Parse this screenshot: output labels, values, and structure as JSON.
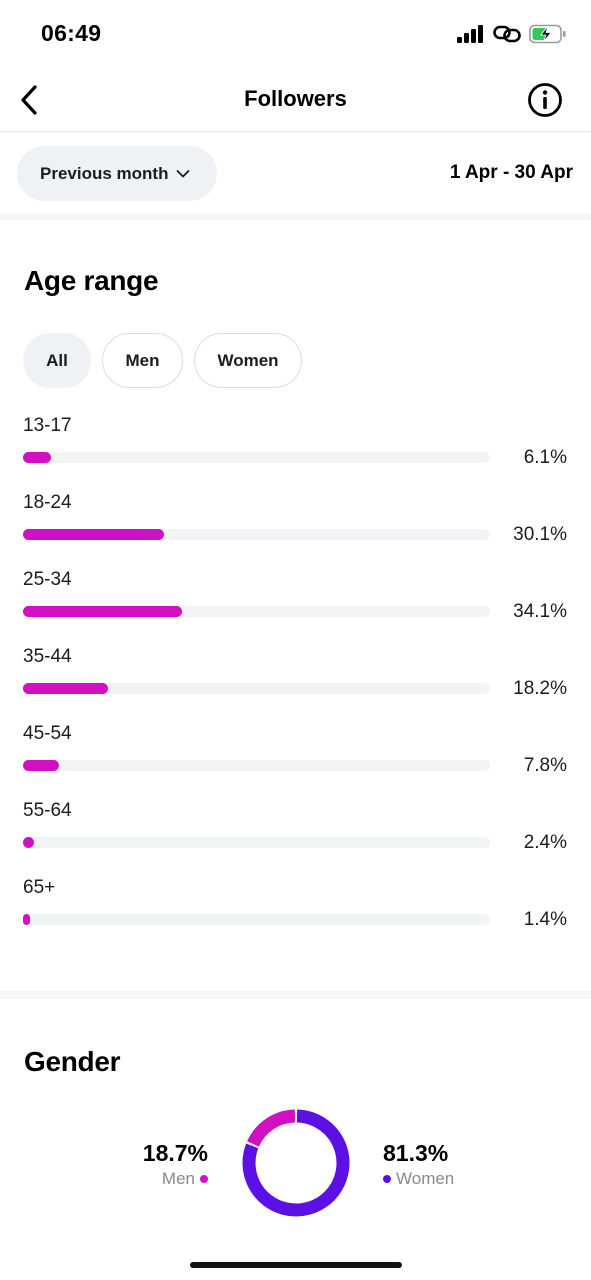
{
  "status_bar": {
    "time": "06:49",
    "icons": [
      "signal-icon",
      "link-icon",
      "battery-charging-icon"
    ],
    "battery_color": "#34c759"
  },
  "nav": {
    "title": "Followers",
    "back_icon": "chevron-left-icon",
    "info_icon": "info-icon"
  },
  "filter": {
    "period_label": "Previous month",
    "period_icon": "chevron-down-icon",
    "date_range": "1 Apr - 30 Apr"
  },
  "age_range": {
    "title": "Age range",
    "tabs": [
      {
        "label": "All",
        "active": true
      },
      {
        "label": "Men",
        "active": false
      },
      {
        "label": "Women",
        "active": false
      }
    ],
    "bar_color": "#d10fc3",
    "rows": [
      {
        "label": "13-17",
        "value": "6.1%",
        "fraction": 0.061
      },
      {
        "label": "18-24",
        "value": "30.1%",
        "fraction": 0.301
      },
      {
        "label": "25-34",
        "value": "34.1%",
        "fraction": 0.341
      },
      {
        "label": "35-44",
        "value": "18.2%",
        "fraction": 0.182
      },
      {
        "label": "45-54",
        "value": "7.8%",
        "fraction": 0.078
      },
      {
        "label": "55-64",
        "value": "2.4%",
        "fraction": 0.024
      },
      {
        "label": "65+",
        "value": "1.4%",
        "fraction": 0.014
      }
    ]
  },
  "gender": {
    "title": "Gender",
    "men": {
      "value": "18.7%",
      "label": "Men",
      "fraction": 0.187,
      "color": "#d10fc3"
    },
    "women": {
      "value": "81.3%",
      "label": "Women",
      "fraction": 0.813,
      "color": "#5d10e6"
    }
  }
}
